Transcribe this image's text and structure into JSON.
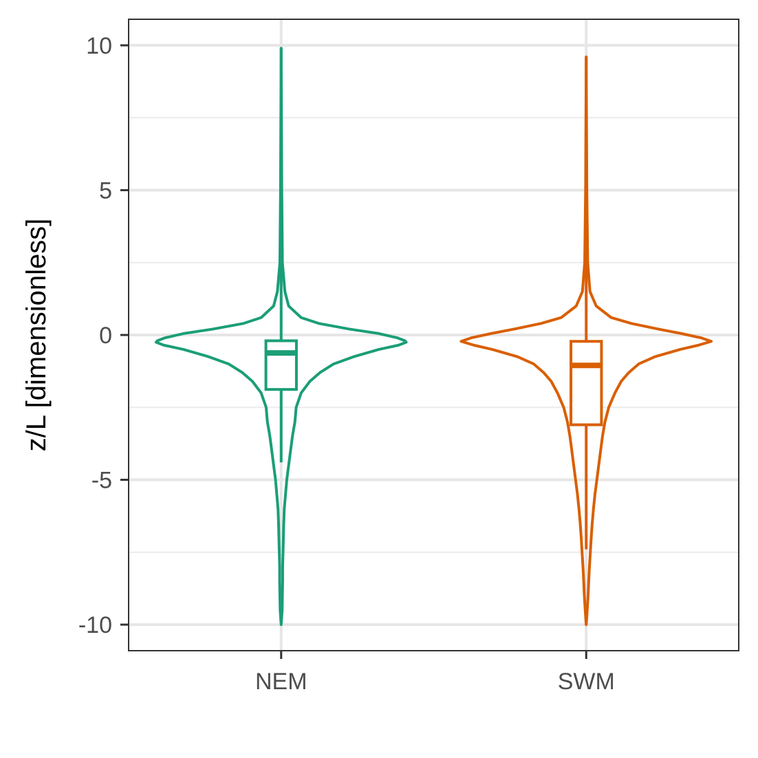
{
  "chart_data": {
    "type": "violin",
    "title": "",
    "xlabel": "",
    "ylabel": "z/L [dimensionless]",
    "ylim": [
      -10.9,
      10.9
    ],
    "y_ticks": [
      10,
      5,
      0,
      -5,
      -10
    ],
    "y_tick_labels": [
      "10",
      "5",
      "0",
      "-5",
      "-10"
    ],
    "y_minor_ticks": [
      7.5,
      2.5,
      -2.5,
      -7.5
    ],
    "grid": true,
    "legend": "none",
    "categories": [
      "NEM",
      "SWM"
    ],
    "series": [
      {
        "category": "NEM",
        "color": "#1b9e77",
        "box": {
          "q1": -1.88,
          "median": -0.62,
          "q3": -0.2,
          "whisker_low": -4.4,
          "whisker_high": 9.9
        },
        "density": [
          [
            9.9,
            0.0
          ],
          [
            5,
            0.005
          ],
          [
            2.5,
            0.01
          ],
          [
            1.5,
            0.03
          ],
          [
            1.0,
            0.06
          ],
          [
            0.6,
            0.16
          ],
          [
            0.4,
            0.3
          ],
          [
            0.2,
            0.55
          ],
          [
            0.05,
            0.78
          ],
          [
            -0.1,
            0.93
          ],
          [
            -0.2,
            0.99
          ],
          [
            -0.25,
            1.0
          ],
          [
            -0.35,
            0.94
          ],
          [
            -0.5,
            0.78
          ],
          [
            -0.75,
            0.58
          ],
          [
            -1.0,
            0.42
          ],
          [
            -1.3,
            0.31
          ],
          [
            -1.6,
            0.23
          ],
          [
            -2.0,
            0.16
          ],
          [
            -2.5,
            0.12
          ],
          [
            -3.0,
            0.11
          ],
          [
            -3.5,
            0.09
          ],
          [
            -4.0,
            0.075
          ],
          [
            -4.5,
            0.06
          ],
          [
            -5.0,
            0.045
          ],
          [
            -5.5,
            0.035
          ],
          [
            -6.0,
            0.025
          ],
          [
            -6.6,
            0.02
          ],
          [
            -7.0,
            0.018
          ],
          [
            -7.5,
            0.015
          ],
          [
            -8.0,
            0.012
          ],
          [
            -8.5,
            0.012
          ],
          [
            -9.0,
            0.01
          ],
          [
            -9.5,
            0.008
          ],
          [
            -9.9,
            0.002
          ],
          [
            -10.0,
            0.0
          ]
        ]
      },
      {
        "category": "SWM",
        "color": "#d95f02",
        "box": {
          "q1": -3.1,
          "median": -1.05,
          "q3": -0.22,
          "whisker_low": -7.4,
          "whisker_high": 9.6
        },
        "density": [
          [
            9.6,
            0.0
          ],
          [
            5,
            0.005
          ],
          [
            2.5,
            0.012
          ],
          [
            1.5,
            0.03
          ],
          [
            1.0,
            0.08
          ],
          [
            0.6,
            0.2
          ],
          [
            0.4,
            0.36
          ],
          [
            0.2,
            0.58
          ],
          [
            0.05,
            0.76
          ],
          [
            -0.1,
            0.92
          ],
          [
            -0.22,
            1.0
          ],
          [
            -0.35,
            0.9
          ],
          [
            -0.5,
            0.75
          ],
          [
            -0.75,
            0.55
          ],
          [
            -1.0,
            0.42
          ],
          [
            -1.3,
            0.34
          ],
          [
            -1.6,
            0.28
          ],
          [
            -2.0,
            0.23
          ],
          [
            -2.5,
            0.18
          ],
          [
            -3.0,
            0.15
          ],
          [
            -3.5,
            0.13
          ],
          [
            -4.0,
            0.115
          ],
          [
            -4.5,
            0.1
          ],
          [
            -5.0,
            0.085
          ],
          [
            -5.5,
            0.07
          ],
          [
            -6.0,
            0.058
          ],
          [
            -6.5,
            0.048
          ],
          [
            -7.0,
            0.04
          ],
          [
            -7.5,
            0.033
          ],
          [
            -8.0,
            0.026
          ],
          [
            -8.5,
            0.02
          ],
          [
            -9.0,
            0.015
          ],
          [
            -9.5,
            0.008
          ],
          [
            -9.9,
            0.002
          ],
          [
            -10.0,
            0.0
          ]
        ]
      }
    ]
  }
}
